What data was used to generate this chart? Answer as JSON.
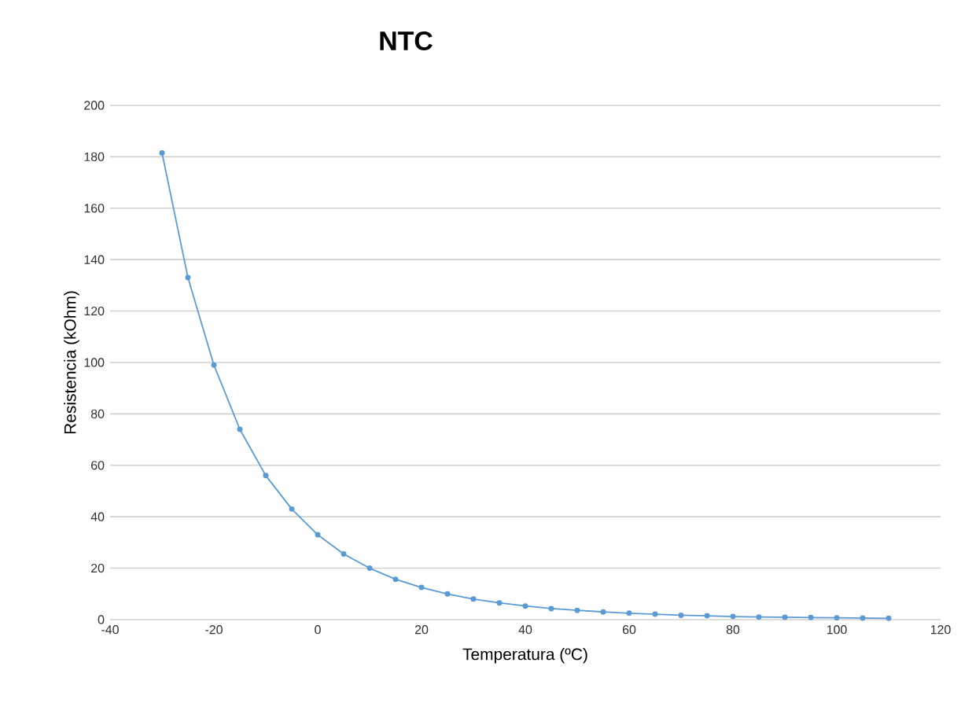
{
  "chart_data": {
    "type": "line",
    "title": "NTC",
    "xlabel": "Temperatura (ºC)",
    "ylabel": "Resistencia (kOhm)",
    "x": [
      -30,
      -25,
      -20,
      -15,
      -10,
      -5,
      0,
      5,
      10,
      15,
      20,
      25,
      30,
      35,
      40,
      45,
      50,
      55,
      60,
      65,
      70,
      75,
      80,
      85,
      90,
      95,
      100,
      105,
      110
    ],
    "series": [
      {
        "color": "#5b9bd5",
        "values": [
          181.5,
          133,
          99,
          74,
          56,
          43,
          33,
          25.5,
          20,
          15.7,
          12.5,
          10,
          8,
          6.5,
          5.3,
          4.3,
          3.6,
          3,
          2.5,
          2.1,
          1.7,
          1.5,
          1.2,
          1,
          0.9,
          0.8,
          0.7,
          0.6,
          0.5
        ]
      }
    ],
    "xlim": [
      -40,
      120
    ],
    "xticks": [
      -40,
      -20,
      0,
      20,
      40,
      60,
      80,
      100,
      120
    ],
    "ylim": [
      0,
      200
    ],
    "yticks": [
      0,
      20,
      40,
      60,
      80,
      100,
      120,
      140,
      160,
      180,
      200
    ],
    "grid": "y",
    "marker": "circle",
    "line_style": "solid"
  }
}
